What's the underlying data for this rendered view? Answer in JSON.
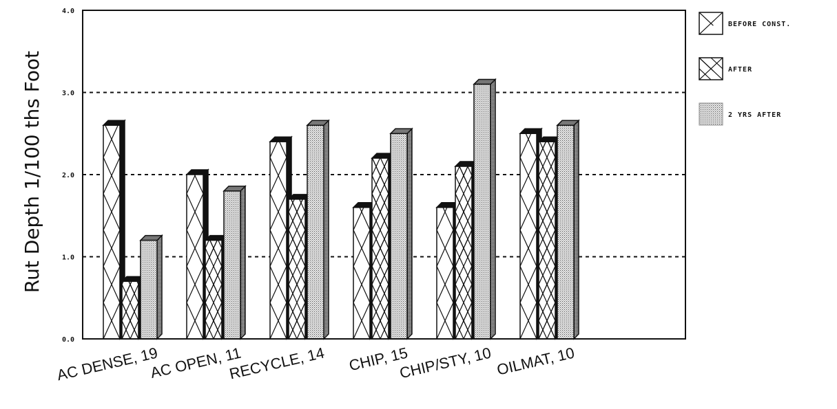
{
  "chart_data": {
    "type": "bar",
    "title": "",
    "xlabel": "",
    "ylabel": "Rut Depth 1/100 ths Foot",
    "ylim": [
      0,
      4.0
    ],
    "yticks": [
      "0.0",
      "1.0",
      "2.0",
      "3.0",
      "4.0"
    ],
    "grid": "dashed horizontal at 1.0, 2.0, 3.0",
    "legend_position": "right",
    "categories": [
      "AC DENSE, 19",
      "AC OPEN, 11",
      "RECYCLE, 14",
      "CHIP, 15",
      "CHIP/STY, 10",
      "OILMAT, 10"
    ],
    "series": [
      {
        "name": "BEFORE CONST.",
        "values": [
          2.6,
          2.0,
          2.4,
          1.6,
          1.6,
          2.5
        ],
        "pattern": "single-cross"
      },
      {
        "name": "AFTER",
        "values": [
          0.7,
          1.2,
          1.7,
          2.2,
          2.1,
          2.4
        ],
        "pattern": "double-cross"
      },
      {
        "name": "2 YRS AFTER",
        "values": [
          1.2,
          1.8,
          2.6,
          2.5,
          3.1,
          2.6
        ],
        "pattern": "dotted"
      }
    ],
    "colors": {
      "ink": "#111111",
      "paper": "#ffffff",
      "dot_fill": "#dcdcdc"
    }
  }
}
